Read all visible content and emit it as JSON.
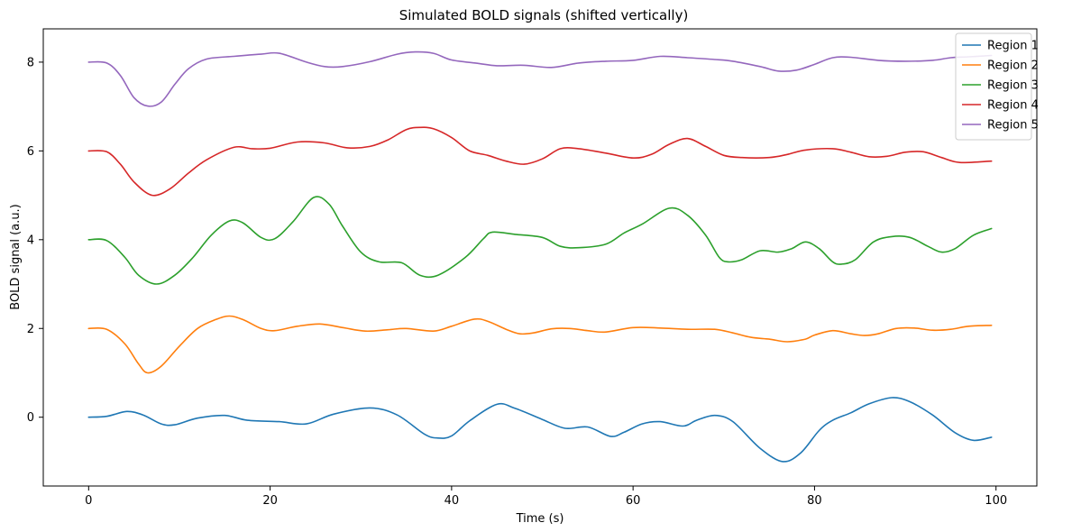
{
  "chart_data": {
    "type": "line",
    "title": "Simulated BOLD signals (shifted vertically)",
    "xlabel": "Time (s)",
    "ylabel": "BOLD signal (a.u.)",
    "xlim": [
      -5,
      104.5
    ],
    "ylim": [
      -1.55,
      8.75
    ],
    "xticks": [
      0,
      20,
      40,
      60,
      80,
      100
    ],
    "yticks": [
      0,
      2,
      4,
      6,
      8
    ],
    "grid": false,
    "legend_position": "top-right",
    "series": [
      {
        "name": "Region 1",
        "color": "#1f77b4",
        "points": [
          [
            0,
            0
          ],
          [
            2,
            0.02
          ],
          [
            4.2,
            0.13
          ],
          [
            6,
            0.05
          ],
          [
            8,
            -0.15
          ],
          [
            9.5,
            -0.17
          ],
          [
            12,
            -0.02
          ],
          [
            15,
            0.04
          ],
          [
            17.5,
            -0.07
          ],
          [
            21,
            -0.1
          ],
          [
            24,
            -0.15
          ],
          [
            27,
            0.07
          ],
          [
            31,
            0.21
          ],
          [
            34,
            0.05
          ],
          [
            37,
            -0.38
          ],
          [
            38.5,
            -0.47
          ],
          [
            40,
            -0.42
          ],
          [
            42,
            -0.08
          ],
          [
            45,
            0.29
          ],
          [
            47,
            0.2
          ],
          [
            50,
            -0.05
          ],
          [
            52.5,
            -0.25
          ],
          [
            55,
            -0.22
          ],
          [
            57.5,
            -0.43
          ],
          [
            59,
            -0.34
          ],
          [
            61,
            -0.15
          ],
          [
            63,
            -0.1
          ],
          [
            65.5,
            -0.2
          ],
          [
            67,
            -0.07
          ],
          [
            69,
            0.04
          ],
          [
            71,
            -0.1
          ],
          [
            74,
            -0.7
          ],
          [
            76.5,
            -1.0
          ],
          [
            78.5,
            -0.8
          ],
          [
            80.5,
            -0.3
          ],
          [
            82,
            -0.07
          ],
          [
            84,
            0.1
          ],
          [
            86,
            0.3
          ],
          [
            88.5,
            0.44
          ],
          [
            90.5,
            0.35
          ],
          [
            93,
            0.05
          ],
          [
            95.5,
            -0.35
          ],
          [
            97.5,
            -0.52
          ],
          [
            99.5,
            -0.45
          ]
        ]
      },
      {
        "name": "Region 2",
        "color": "#ff7f0e",
        "points": [
          [
            0,
            2
          ],
          [
            2,
            1.98
          ],
          [
            4,
            1.65
          ],
          [
            5.5,
            1.2
          ],
          [
            6.5,
            1.0
          ],
          [
            8,
            1.15
          ],
          [
            10,
            1.6
          ],
          [
            12,
            2.0
          ],
          [
            14,
            2.2
          ],
          [
            15.5,
            2.28
          ],
          [
            17,
            2.2
          ],
          [
            19,
            2.0
          ],
          [
            20.5,
            1.95
          ],
          [
            23,
            2.05
          ],
          [
            25.5,
            2.1
          ],
          [
            28,
            2.02
          ],
          [
            30.5,
            1.94
          ],
          [
            33,
            1.97
          ],
          [
            35,
            2.0
          ],
          [
            38,
            1.94
          ],
          [
            40,
            2.05
          ],
          [
            42.5,
            2.21
          ],
          [
            44,
            2.16
          ],
          [
            46,
            1.98
          ],
          [
            47.5,
            1.88
          ],
          [
            49,
            1.9
          ],
          [
            51,
            1.99
          ],
          [
            53,
            2.0
          ],
          [
            55,
            1.95
          ],
          [
            57,
            1.92
          ],
          [
            60,
            2.02
          ],
          [
            63,
            2.01
          ],
          [
            66,
            1.98
          ],
          [
            69,
            1.98
          ],
          [
            71,
            1.9
          ],
          [
            73,
            1.8
          ],
          [
            75,
            1.76
          ],
          [
            77,
            1.7
          ],
          [
            79,
            1.76
          ],
          [
            80,
            1.85
          ],
          [
            82,
            1.95
          ],
          [
            84,
            1.88
          ],
          [
            85.5,
            1.84
          ],
          [
            87,
            1.88
          ],
          [
            89,
            2.0
          ],
          [
            91,
            2.01
          ],
          [
            93,
            1.96
          ],
          [
            95,
            1.98
          ],
          [
            97,
            2.05
          ],
          [
            99.5,
            2.07
          ]
        ]
      },
      {
        "name": "Region 3",
        "color": "#2ca02c",
        "points": [
          [
            0,
            4
          ],
          [
            2,
            3.98
          ],
          [
            4,
            3.6
          ],
          [
            5.5,
            3.2
          ],
          [
            7.5,
            3.0
          ],
          [
            9.5,
            3.2
          ],
          [
            11.5,
            3.6
          ],
          [
            13.5,
            4.1
          ],
          [
            15.5,
            4.42
          ],
          [
            17,
            4.38
          ],
          [
            19,
            4.05
          ],
          [
            20.5,
            4.02
          ],
          [
            22.5,
            4.4
          ],
          [
            24.8,
            4.95
          ],
          [
            26.5,
            4.8
          ],
          [
            28,
            4.3
          ],
          [
            30,
            3.72
          ],
          [
            32,
            3.5
          ],
          [
            34.5,
            3.48
          ],
          [
            36.5,
            3.2
          ],
          [
            38.5,
            3.2
          ],
          [
            41.5,
            3.6
          ],
          [
            43.5,
            4.02
          ],
          [
            44.5,
            4.17
          ],
          [
            47,
            4.12
          ],
          [
            50,
            4.05
          ],
          [
            52,
            3.85
          ],
          [
            54,
            3.82
          ],
          [
            57,
            3.9
          ],
          [
            59,
            4.15
          ],
          [
            61,
            4.35
          ],
          [
            64,
            4.71
          ],
          [
            66,
            4.55
          ],
          [
            68,
            4.1
          ],
          [
            69.5,
            3.6
          ],
          [
            70.5,
            3.5
          ],
          [
            72,
            3.55
          ],
          [
            74,
            3.75
          ],
          [
            76,
            3.72
          ],
          [
            77.5,
            3.8
          ],
          [
            79,
            3.95
          ],
          [
            80.5,
            3.8
          ],
          [
            82,
            3.5
          ],
          [
            83,
            3.45
          ],
          [
            84.5,
            3.55
          ],
          [
            86.5,
            3.95
          ],
          [
            88.5,
            4.07
          ],
          [
            90.5,
            4.05
          ],
          [
            92.5,
            3.85
          ],
          [
            94,
            3.72
          ],
          [
            95.5,
            3.8
          ],
          [
            97.5,
            4.1
          ],
          [
            99.5,
            4.25
          ]
        ]
      },
      {
        "name": "Region 4",
        "color": "#d62728",
        "points": [
          [
            0,
            6
          ],
          [
            2,
            5.98
          ],
          [
            3.5,
            5.7
          ],
          [
            5,
            5.3
          ],
          [
            7,
            5.0
          ],
          [
            9,
            5.15
          ],
          [
            11,
            5.5
          ],
          [
            13,
            5.8
          ],
          [
            16,
            6.08
          ],
          [
            18,
            6.05
          ],
          [
            20,
            6.06
          ],
          [
            23,
            6.2
          ],
          [
            26,
            6.18
          ],
          [
            28.5,
            6.07
          ],
          [
            31,
            6.1
          ],
          [
            33,
            6.25
          ],
          [
            35,
            6.48
          ],
          [
            36.5,
            6.53
          ],
          [
            38,
            6.5
          ],
          [
            40,
            6.3
          ],
          [
            42,
            6.0
          ],
          [
            44,
            5.9
          ],
          [
            46,
            5.77
          ],
          [
            48,
            5.7
          ],
          [
            50,
            5.82
          ],
          [
            52,
            6.05
          ],
          [
            54,
            6.05
          ],
          [
            57,
            5.95
          ],
          [
            60,
            5.84
          ],
          [
            62,
            5.92
          ],
          [
            64,
            6.15
          ],
          [
            66,
            6.28
          ],
          [
            68,
            6.1
          ],
          [
            70,
            5.9
          ],
          [
            72,
            5.85
          ],
          [
            75,
            5.85
          ],
          [
            77,
            5.92
          ],
          [
            79,
            6.02
          ],
          [
            82,
            6.05
          ],
          [
            84,
            5.97
          ],
          [
            86,
            5.87
          ],
          [
            88,
            5.88
          ],
          [
            90,
            5.97
          ],
          [
            92,
            5.98
          ],
          [
            94,
            5.85
          ],
          [
            96,
            5.74
          ],
          [
            99.5,
            5.77
          ]
        ]
      },
      {
        "name": "Region 5",
        "color": "#9467bd",
        "points": [
          [
            0,
            8
          ],
          [
            2,
            7.98
          ],
          [
            3.5,
            7.7
          ],
          [
            5,
            7.2
          ],
          [
            6.5,
            7.01
          ],
          [
            8,
            7.1
          ],
          [
            9.5,
            7.5
          ],
          [
            11,
            7.85
          ],
          [
            13,
            8.07
          ],
          [
            16,
            8.13
          ],
          [
            19,
            8.18
          ],
          [
            21,
            8.2
          ],
          [
            24,
            8.0
          ],
          [
            26,
            7.9
          ],
          [
            28,
            7.9
          ],
          [
            31,
            8.01
          ],
          [
            34,
            8.18
          ],
          [
            36,
            8.23
          ],
          [
            38,
            8.2
          ],
          [
            40,
            8.05
          ],
          [
            43,
            7.97
          ],
          [
            45,
            7.92
          ],
          [
            48,
            7.93
          ],
          [
            51,
            7.88
          ],
          [
            54,
            7.98
          ],
          [
            57,
            8.02
          ],
          [
            60,
            8.04
          ],
          [
            63,
            8.13
          ],
          [
            66,
            8.1
          ],
          [
            69,
            8.06
          ],
          [
            71,
            8.02
          ],
          [
            74,
            7.9
          ],
          [
            76,
            7.8
          ],
          [
            78,
            7.82
          ],
          [
            80,
            7.95
          ],
          [
            82,
            8.1
          ],
          [
            84,
            8.11
          ],
          [
            87,
            8.04
          ],
          [
            90,
            8.02
          ],
          [
            93,
            8.04
          ],
          [
            95,
            8.1
          ],
          [
            97,
            8.12
          ],
          [
            99.5,
            8.15
          ]
        ]
      }
    ]
  }
}
